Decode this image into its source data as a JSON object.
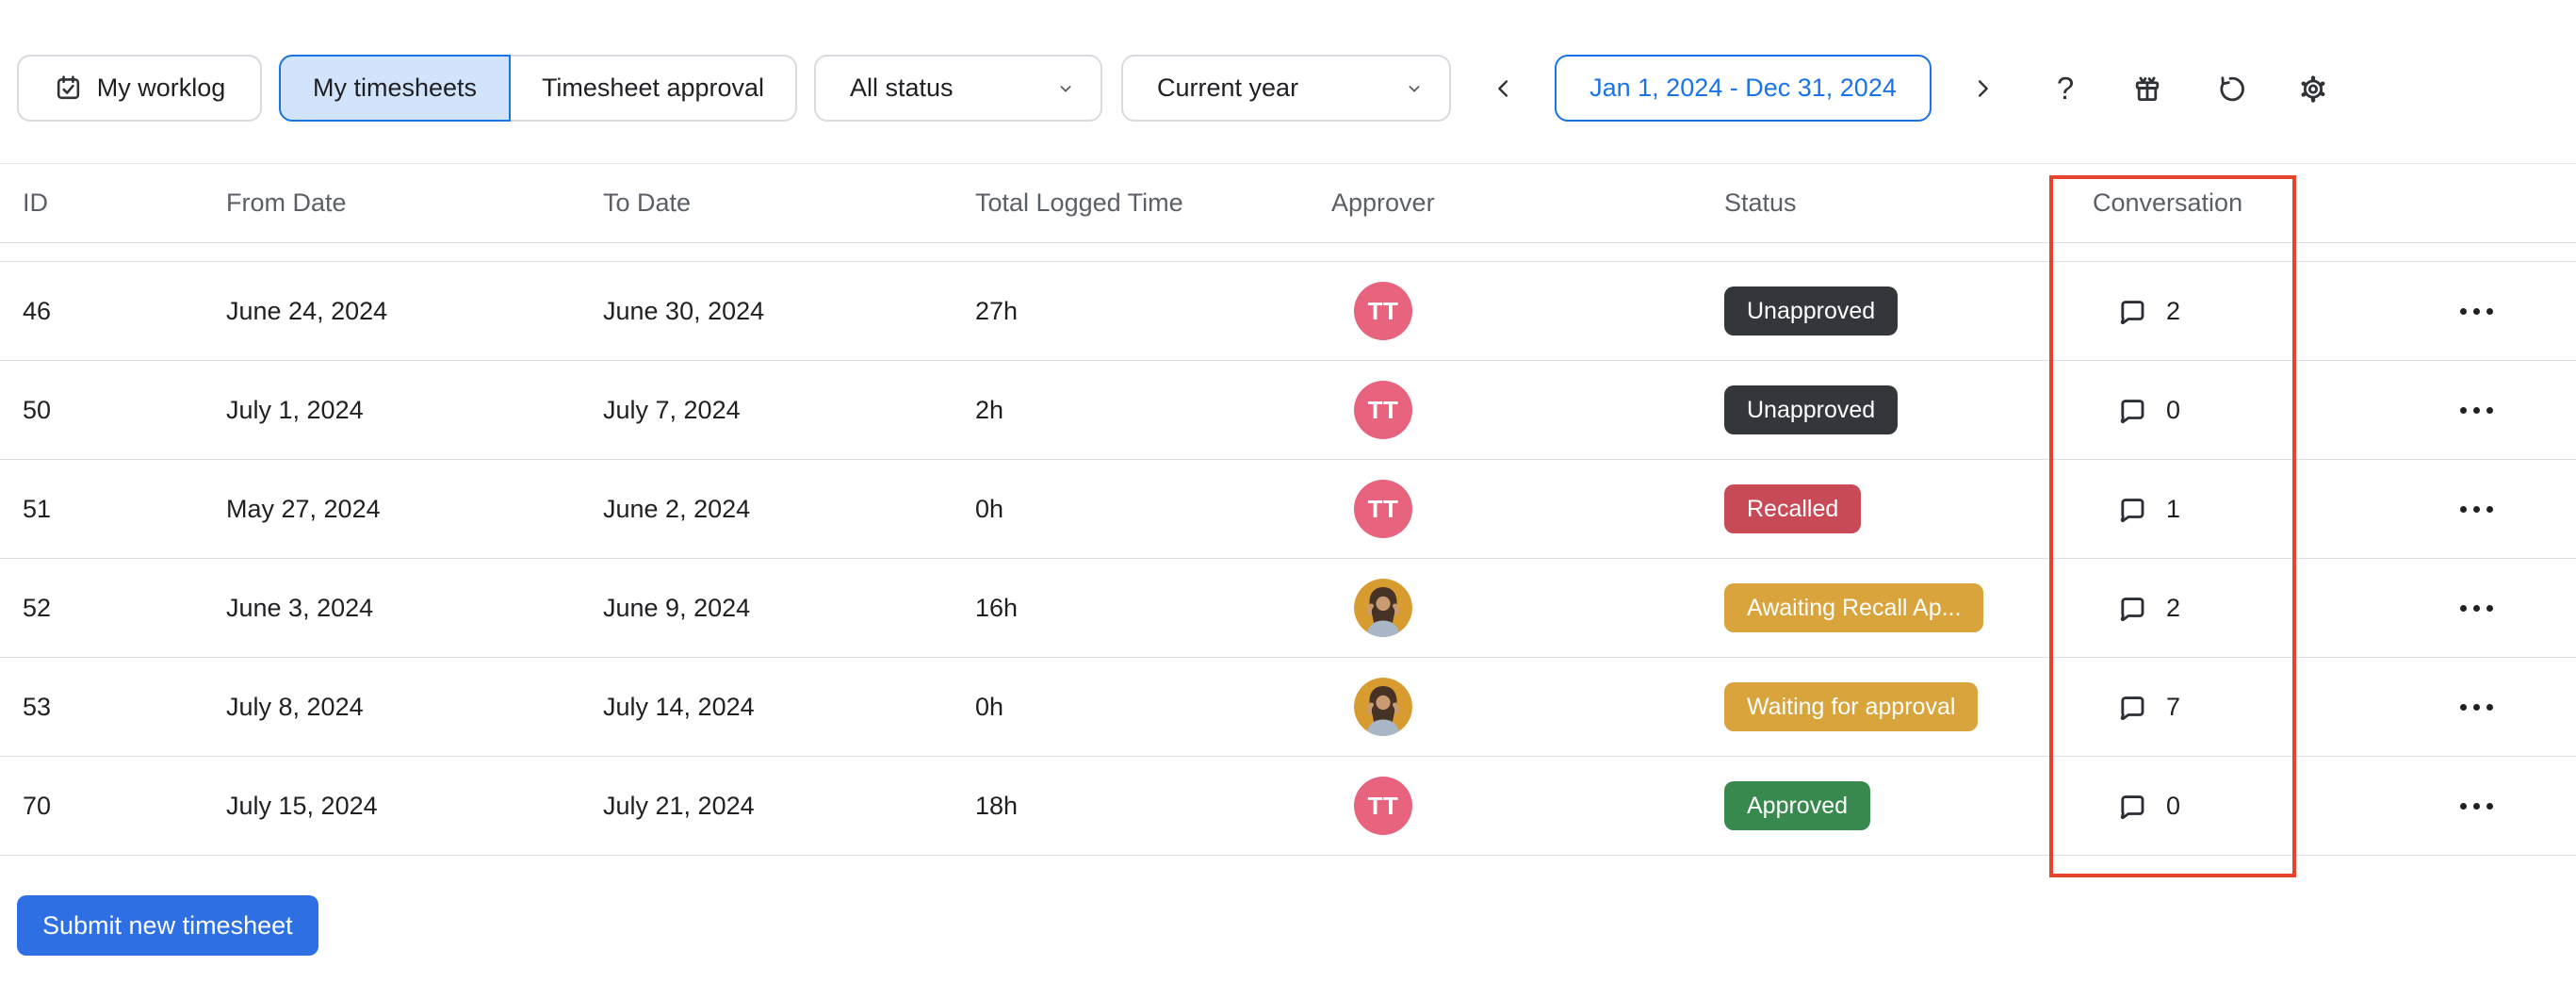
{
  "toolbar": {
    "worklog": {
      "label": "My worklog",
      "icon": "calendar-check"
    },
    "tabs": [
      {
        "label": "My timesheets",
        "active": true
      },
      {
        "label": "Timesheet approval",
        "active": false
      }
    ],
    "status_filter": {
      "value": "All status",
      "icon": "chevron-down"
    },
    "period_filter": {
      "value": "Current year",
      "icon": "chevron-down"
    },
    "prev_icon": "chevron-left",
    "next_icon": "chevron-right",
    "date_range": {
      "label": "Jan 1, 2024 - Dec 31, 2024"
    },
    "help_glyph": "?",
    "action_icons": [
      "question-mark",
      "gift",
      "restore",
      "gear"
    ]
  },
  "table": {
    "columns": [
      "ID",
      "From Date",
      "To Date",
      "Total Logged Time",
      "Approver",
      "Status",
      "Conversation"
    ],
    "rows": [
      {
        "id": "46",
        "from": "June 24, 2024",
        "to": "June 30, 2024",
        "total": "27h",
        "approver": {
          "type": "initials",
          "label": "TT"
        },
        "status": {
          "label": "Unapproved",
          "variant": "dark"
        },
        "conversation": "2",
        "conversation_icon": "comment-bubble",
        "actions_icon": "ellipsis"
      },
      {
        "id": "50",
        "from": "July 1, 2024",
        "to": "July 7, 2024",
        "total": "2h",
        "approver": {
          "type": "initials",
          "label": "TT"
        },
        "status": {
          "label": "Unapproved",
          "variant": "dark"
        },
        "conversation": "0",
        "conversation_icon": "comment-bubble",
        "actions_icon": "ellipsis"
      },
      {
        "id": "51",
        "from": "May 27, 2024",
        "to": "June 2, 2024",
        "total": "0h",
        "approver": {
          "type": "initials",
          "label": "TT"
        },
        "status": {
          "label": "Recalled",
          "variant": "red"
        },
        "conversation": "1",
        "conversation_icon": "comment-bubble",
        "actions_icon": "ellipsis"
      },
      {
        "id": "52",
        "from": "June 3, 2024",
        "to": "June 9, 2024",
        "total": "16h",
        "approver": {
          "type": "photo",
          "label": "photo-avatar"
        },
        "status": {
          "label": "Awaiting Recall Ap...",
          "variant": "yellow"
        },
        "conversation": "2",
        "conversation_icon": "comment-bubble",
        "actions_icon": "ellipsis"
      },
      {
        "id": "53",
        "from": "July 8, 2024",
        "to": "July 14, 2024",
        "total": "0h",
        "approver": {
          "type": "photo",
          "label": "photo-avatar"
        },
        "status": {
          "label": "Waiting for approval",
          "variant": "yellow"
        },
        "conversation": "7",
        "conversation_icon": "comment-bubble",
        "actions_icon": "ellipsis"
      },
      {
        "id": "70",
        "from": "July 15, 2024",
        "to": "July 21, 2024",
        "total": "18h",
        "approver": {
          "type": "initials",
          "label": "TT"
        },
        "status": {
          "label": "Approved",
          "variant": "green"
        },
        "conversation": "0",
        "conversation_icon": "comment-bubble",
        "actions_icon": "ellipsis"
      }
    ]
  },
  "annotation": {
    "name": "conversation-column-highlight",
    "color": "#e8432c"
  },
  "footer": {
    "submit_label": "Submit new timesheet"
  },
  "colors": {
    "accent_blue": "#1a73e8",
    "button_blue": "#2e70e3",
    "active_tab_bg": "#d2e3fc",
    "badge_dark": "#33363b",
    "badge_red": "#c94a57",
    "badge_yellow": "#d9a43b",
    "badge_green": "#37894e",
    "avatar_pink": "#e8637e",
    "row_border": "#dcdfe5"
  }
}
